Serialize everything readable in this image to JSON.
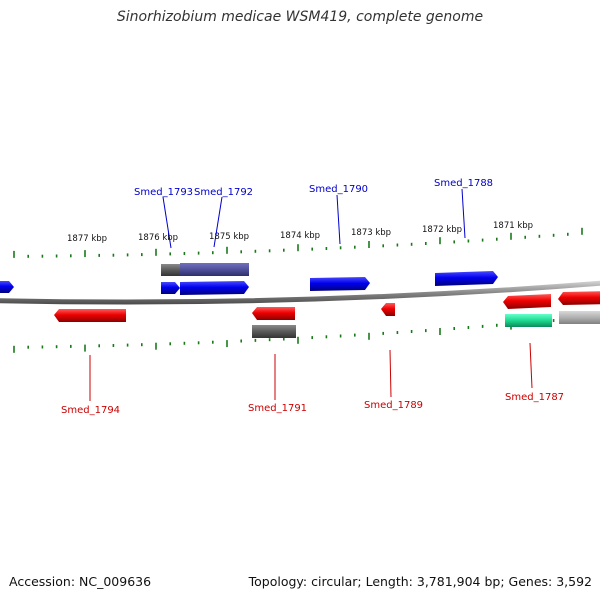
{
  "title": "Sinorhizobium medicae WSM419, complete genome",
  "footer": {
    "accession": "Accession: NC_009636",
    "summary": "Topology: circular; Length: 3,781,904 bp; Genes: 3,592"
  },
  "colors": {
    "forward": "#0000ee",
    "reverse": "#ee0000",
    "backbone": "#8a8a8a",
    "tick": "#1a7a1a",
    "forward_label": "#0000cc",
    "reverse_label": "#cc0000"
  },
  "scale_labels": [
    {
      "label": "1877 kbp",
      "pos_kbp": 1877
    },
    {
      "label": "1876 kbp",
      "pos_kbp": 1876
    },
    {
      "label": "1875 kbp",
      "pos_kbp": 1875
    },
    {
      "label": "1874 kbp",
      "pos_kbp": 1874
    },
    {
      "label": "1873 kbp",
      "pos_kbp": 1873
    },
    {
      "label": "1872 kbp",
      "pos_kbp": 1872
    },
    {
      "label": "1871 kbp",
      "pos_kbp": 1871
    }
  ],
  "gene_labels": {
    "forward": [
      "Smed_1793",
      "Smed_1792",
      "Smed_1790",
      "Smed_1788"
    ],
    "reverse": [
      "Smed_1794",
      "Smed_1791",
      "Smed_1789",
      "Smed_1787"
    ]
  }
}
